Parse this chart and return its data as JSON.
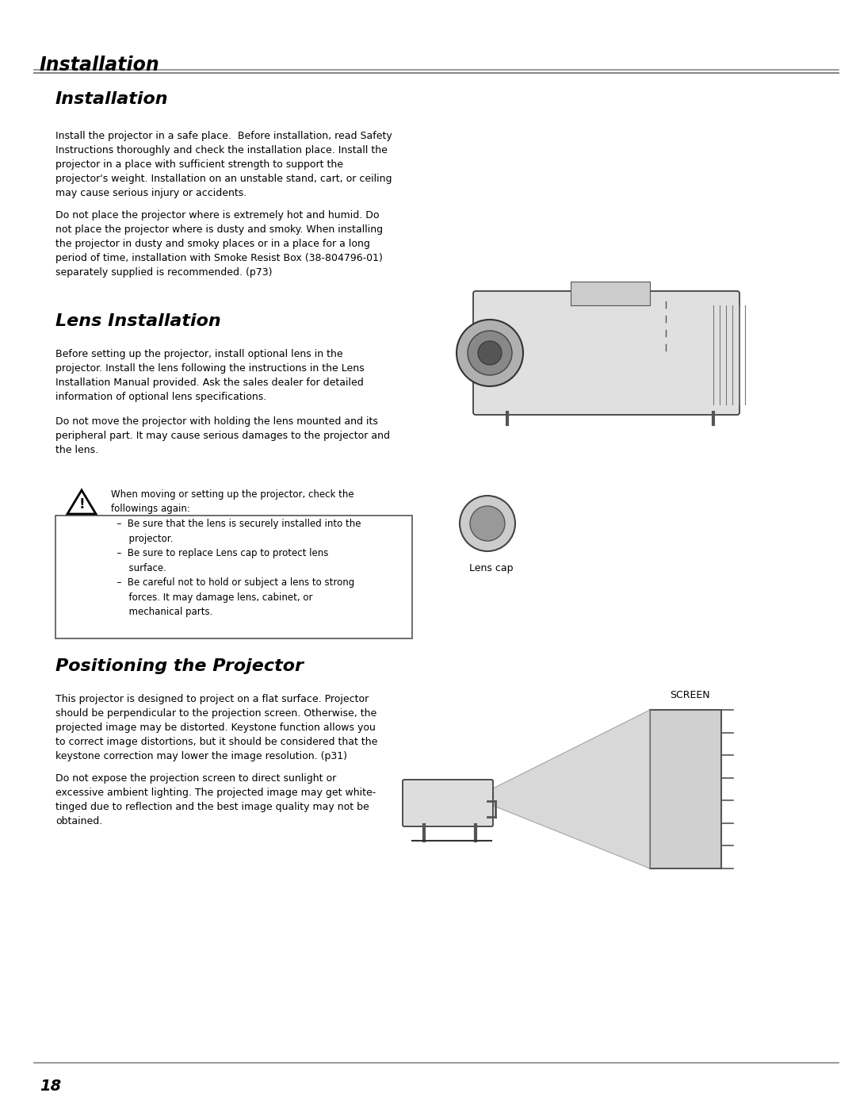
{
  "page_number": "18",
  "header_title": "Installation",
  "bg_color": "#ffffff",
  "text_color": "#000000",
  "gray_line_color": "#888888",
  "section1_title": "Installation",
  "section1_para1": "Install the projector in a safe place.  Before installation, read Safety\nInstructions thoroughly and check the installation place. Install the\nprojector in a place with sufficient strength to support the\nprojector's weight. Installation on an unstable stand, cart, or ceiling\nmay cause serious injury or accidents.",
  "section1_para2": "Do not place the projector where is extremely hot and humid. Do\nnot place the projector where is dusty and smoky. When installing\nthe projector in dusty and smoky places or in a place for a long\nperiod of time, installation with Smoke Resist Box (38-804796-01)\nseparately supplied is recommended. (p73)",
  "section2_title": "Lens Installation",
  "section2_para1": "Before setting up the projector, install optional lens in the\nprojector. Install the lens following the instructions in the Lens\nInstallation Manual provided. Ask the sales dealer for detailed\ninformation of optional lens specifications.",
  "section2_para2": "Do not move the projector with holding the lens mounted and its\nperipheral part. It may cause serious damages to the projector and\nthe lens.",
  "section2_warning_text": "When moving or setting up the projector, check the\nfollowings again:\n  –  Be sure that the lens is securely installed into the\n      projector.\n  –  Be sure to replace Lens cap to protect lens\n      surface.\n  –  Be careful not to hold or subject a lens to strong\n      forces. It may damage lens, cabinet, or\n      mechanical parts.",
  "lens_cap_label": "Lens cap",
  "section3_title": "Positioning the Projector",
  "section3_para1": "This projector is designed to project on a flat surface. Projector\nshould be perpendicular to the projection screen. Otherwise, the\nprojected image may be distorted. Keystone function allows you\nto correct image distortions, but it should be considered that the\nkeystone correction may lower the image resolution. (p31)",
  "section3_para2": "Do not expose the projection screen to direct sunlight or\nexcessive ambient lighting. The projected image may get white-\ntinged due to reflection and the best image quality may not be\nobtained.",
  "screen_label": "SCREEN"
}
